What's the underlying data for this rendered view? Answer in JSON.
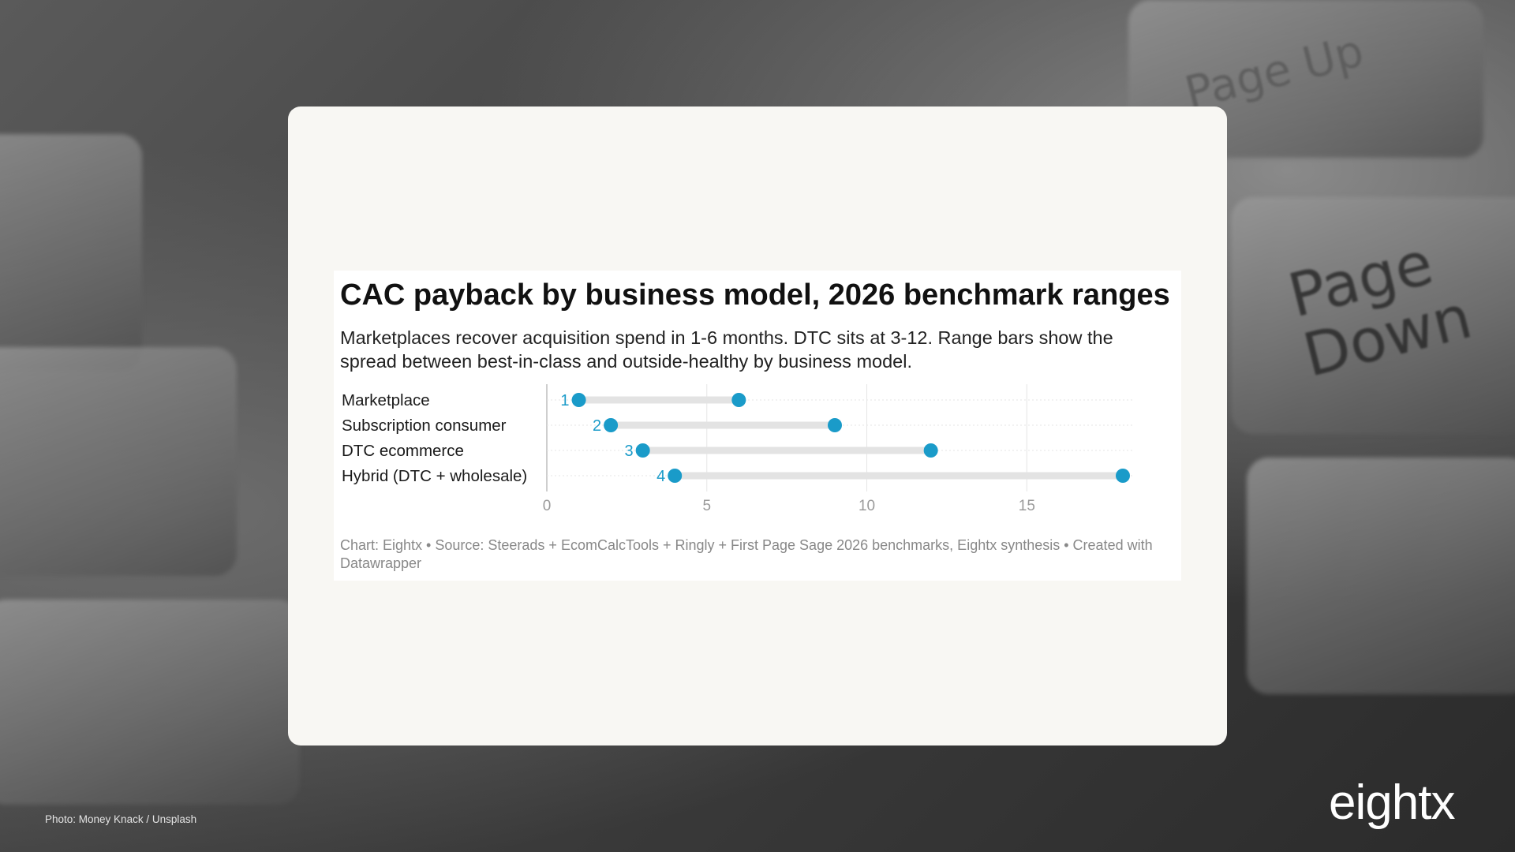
{
  "background": {
    "keycap_labels": [
      "Page Down",
      "Page Up"
    ]
  },
  "photo_credit": "Photo: Money Knack / Unsplash",
  "brand": "eightx",
  "chart": {
    "title": "CAC payback by business model, 2026 benchmark ranges",
    "subtitle": "Marketplaces recover acquisition spend in 1-6 months. DTC sits at 3-12. Range bars show the spread between best-in-class and outside-healthy by business model.",
    "notes": "Chart: Eightx • Source: Steerads + EcomCalcTools + Ringly + First Page Sage 2026 benchmarks, Eightx synthesis • Created with Datawrapper"
  },
  "chart_data": {
    "type": "range-dot",
    "categories": [
      "Marketplace",
      "Subscription consumer",
      "DTC ecommerce",
      "Hybrid (DTC + wholesale)"
    ],
    "series": [
      {
        "values": [
          1,
          2,
          3,
          4
        ]
      },
      {
        "values": [
          6,
          9,
          12,
          18
        ]
      }
    ],
    "start_labels": [
      "1",
      "2",
      "3",
      "4"
    ],
    "xlim": [
      0,
      18
    ],
    "xticks": [
      0,
      5,
      10,
      15
    ],
    "grid": true,
    "colors": {
      "dot": "#1a9bc9",
      "range_bar": "#e3e3e3",
      "label": "#1a9bc9",
      "tick": "#9a9a9a",
      "gridline": "#e5e5e5"
    }
  }
}
